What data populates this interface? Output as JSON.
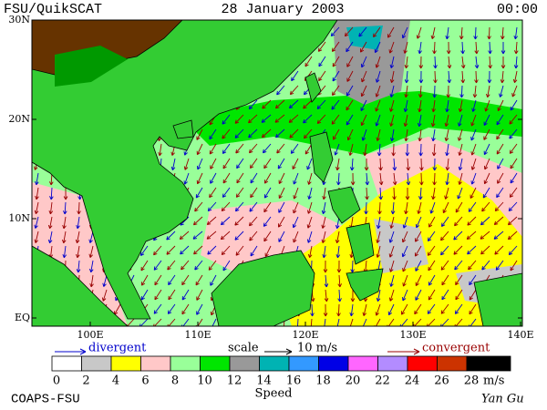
{
  "header": {
    "left": "FSU/QuikSCAT",
    "center": "28 January 2003",
    "right": "00:00"
  },
  "map": {
    "lat_labels": [
      "30N",
      "20N",
      "10N",
      "EQ"
    ],
    "lon_labels": [
      "100E",
      "110E",
      "120E",
      "130E",
      "140E"
    ]
  },
  "legend": {
    "divergent": "divergent",
    "scale": "scale",
    "scale_value": "10 m/s",
    "convergent": "convergent",
    "colorbar": {
      "ticks": [
        0,
        2,
        4,
        6,
        8,
        10,
        12,
        14,
        16,
        18,
        20,
        22,
        24,
        26,
        28
      ],
      "unit": "m/s",
      "colors": [
        "#ffffff",
        "#c8c8c8",
        "#ffff00",
        "#ffc8c8",
        "#99ff99",
        "#00e600",
        "#999999",
        "#00b3b3",
        "#3399ff",
        "#0000e6",
        "#ff66ff",
        "#b38cff",
        "#ff0000",
        "#cc3300",
        "#000000"
      ]
    },
    "label": "Speed"
  },
  "footer": {
    "left": "COAPS-FSU",
    "right": "Yan Gu"
  }
}
